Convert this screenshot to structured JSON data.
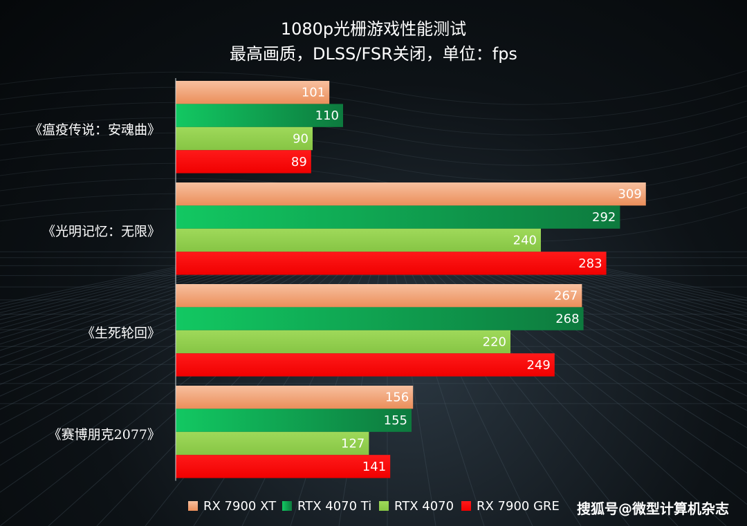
{
  "chart_data": {
    "type": "bar",
    "orientation": "horizontal",
    "title": "1080p光栅游戏性能测试",
    "subtitle": "最高画质，DLSS/FSR关闭，单位：fps",
    "categories": [
      "《瘟疫传说：安魂曲》",
      "《光明记忆：无限》",
      "《生死轮回》",
      "《赛博朋克2077》"
    ],
    "series": [
      {
        "name": "RX 7900 XT",
        "values": [
          101,
          309,
          267,
          156
        ],
        "color": "#f4a77a"
      },
      {
        "name": "RTX 4070 Ti",
        "values": [
          110,
          292,
          268,
          155
        ],
        "color": "#1db45c"
      },
      {
        "name": "RTX 4070",
        "values": [
          90,
          240,
          220,
          127
        ],
        "color": "#92d050"
      },
      {
        "name": "RX 7900 GRE",
        "values": [
          89,
          283,
          249,
          141
        ],
        "color": "#ff0000"
      }
    ],
    "xlim": [
      0,
      335
    ],
    "legend_position": "bottom",
    "grid": false
  },
  "watermark": "搜狐号@微型计算机杂志"
}
